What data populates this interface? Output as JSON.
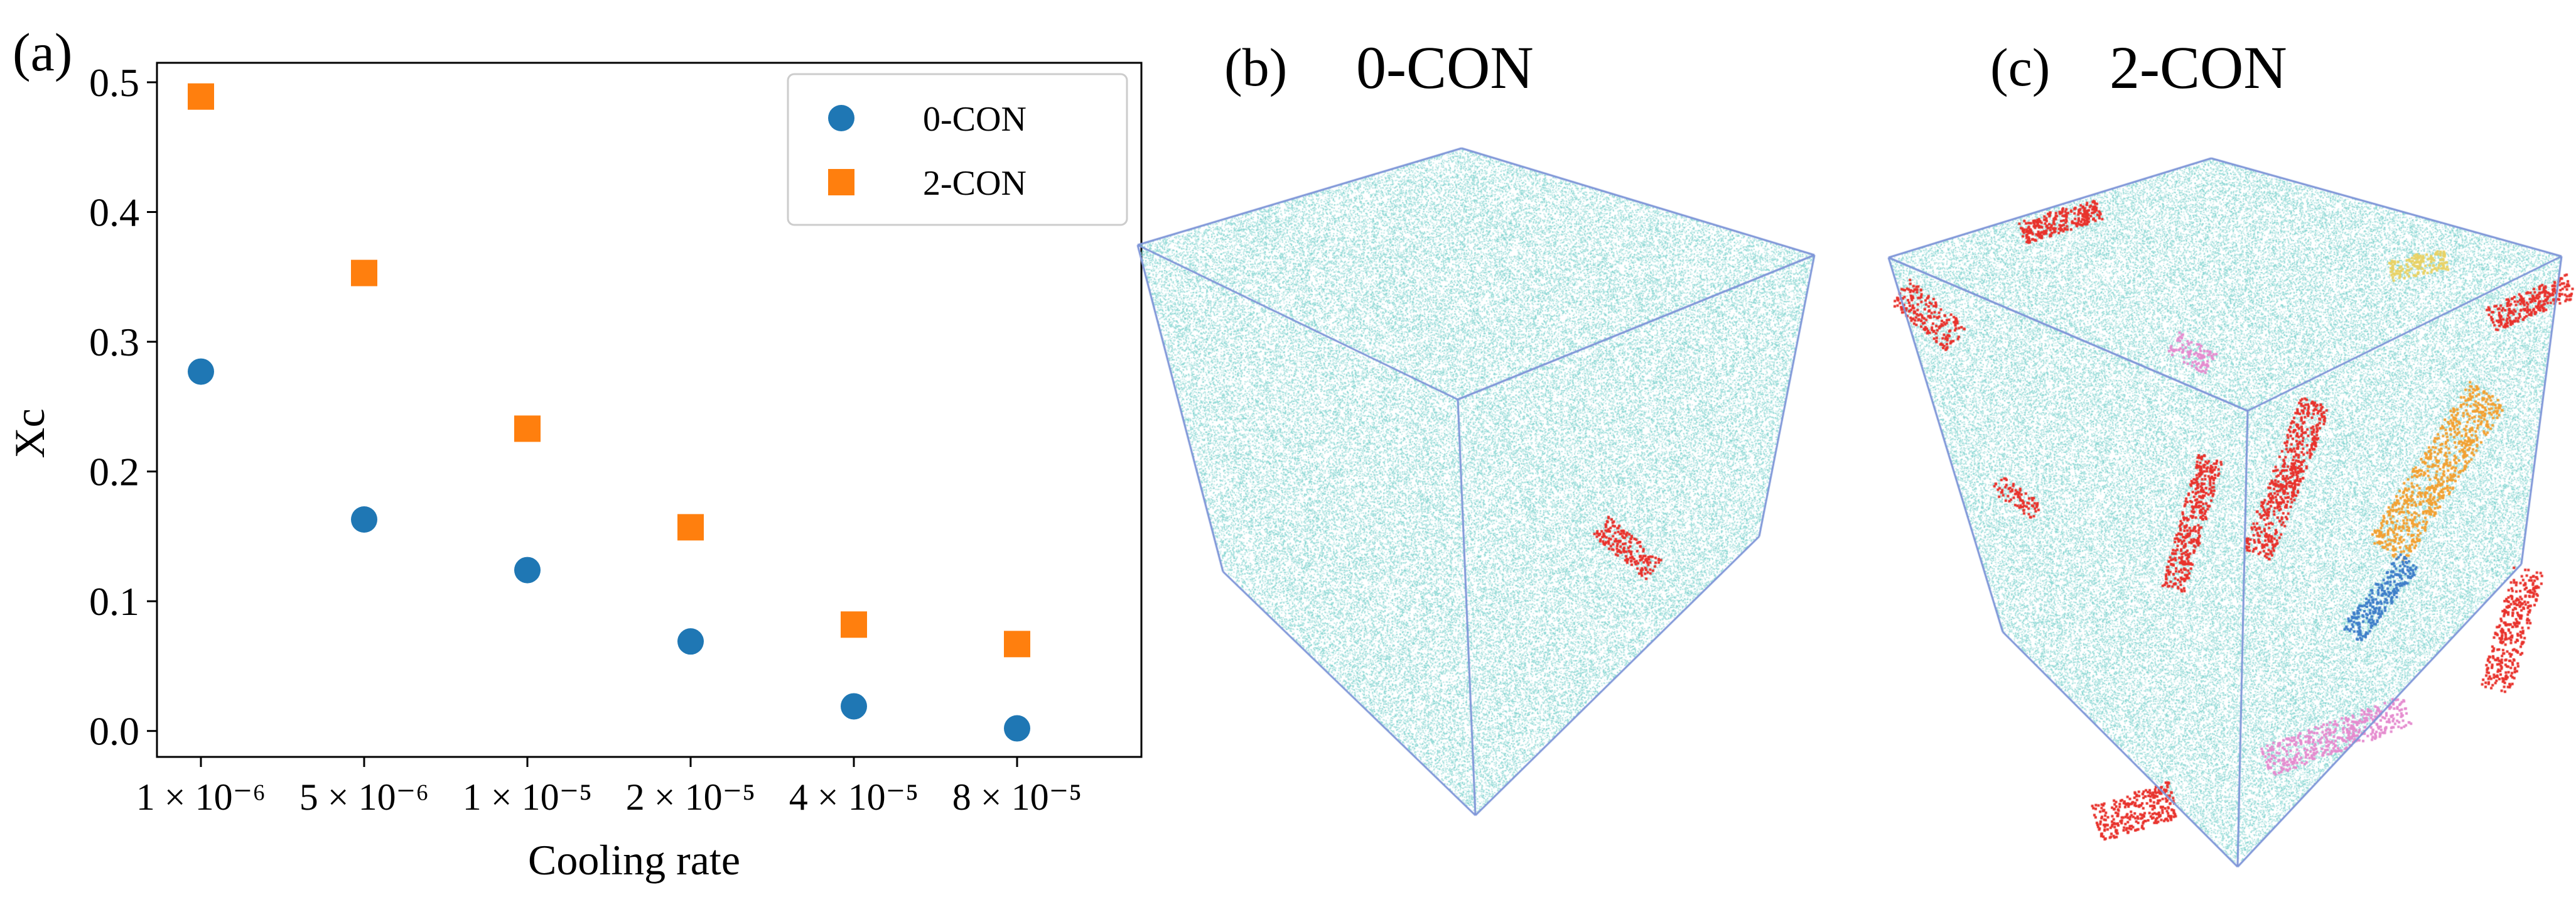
{
  "panels": {
    "a": {
      "letter": "(a)"
    },
    "b": {
      "letter": "(b)",
      "title": "0-CON"
    },
    "c": {
      "letter": "(c)",
      "title": "2-CON"
    }
  },
  "colors": {
    "series_0con": "#1f77b4",
    "series_2con": "#ff7f0e",
    "atom_background": "#7fd3cf",
    "cube_edge": "#7f96d8",
    "crystal_red": "#e8322c",
    "crystal_orange": "#f2a133",
    "crystal_blue": "#3f7fc9",
    "crystal_pink": "#e58ccf",
    "crystal_yellow": "#e8d266"
  },
  "chart_data": {
    "type": "scatter",
    "title": "",
    "xlabel": "Cooling rate",
    "ylabel": "Xc",
    "categories": [
      "1 × 10⁻⁶",
      "5 × 10⁻⁶",
      "1 × 10⁻⁵",
      "2 × 10⁻⁵",
      "4 × 10⁻⁵",
      "8 × 10⁻⁵"
    ],
    "ylim": [
      -0.02,
      0.515
    ],
    "yticks": [
      0.0,
      0.1,
      0.2,
      0.3,
      0.4,
      0.5
    ],
    "ytick_labels": [
      "0.0",
      "0.1",
      "0.2",
      "0.3",
      "0.4",
      "0.5"
    ],
    "grid": false,
    "legend_position": "top-right",
    "series": [
      {
        "name": "0-CON",
        "marker": "circle",
        "color": "#1f77b4",
        "values": [
          0.277,
          0.163,
          0.124,
          0.069,
          0.019,
          0.002
        ]
      },
      {
        "name": "2-CON",
        "marker": "square",
        "color": "#ff7f0e",
        "values": [
          0.489,
          0.353,
          0.233,
          0.157,
          0.082,
          0.067
        ]
      }
    ]
  }
}
